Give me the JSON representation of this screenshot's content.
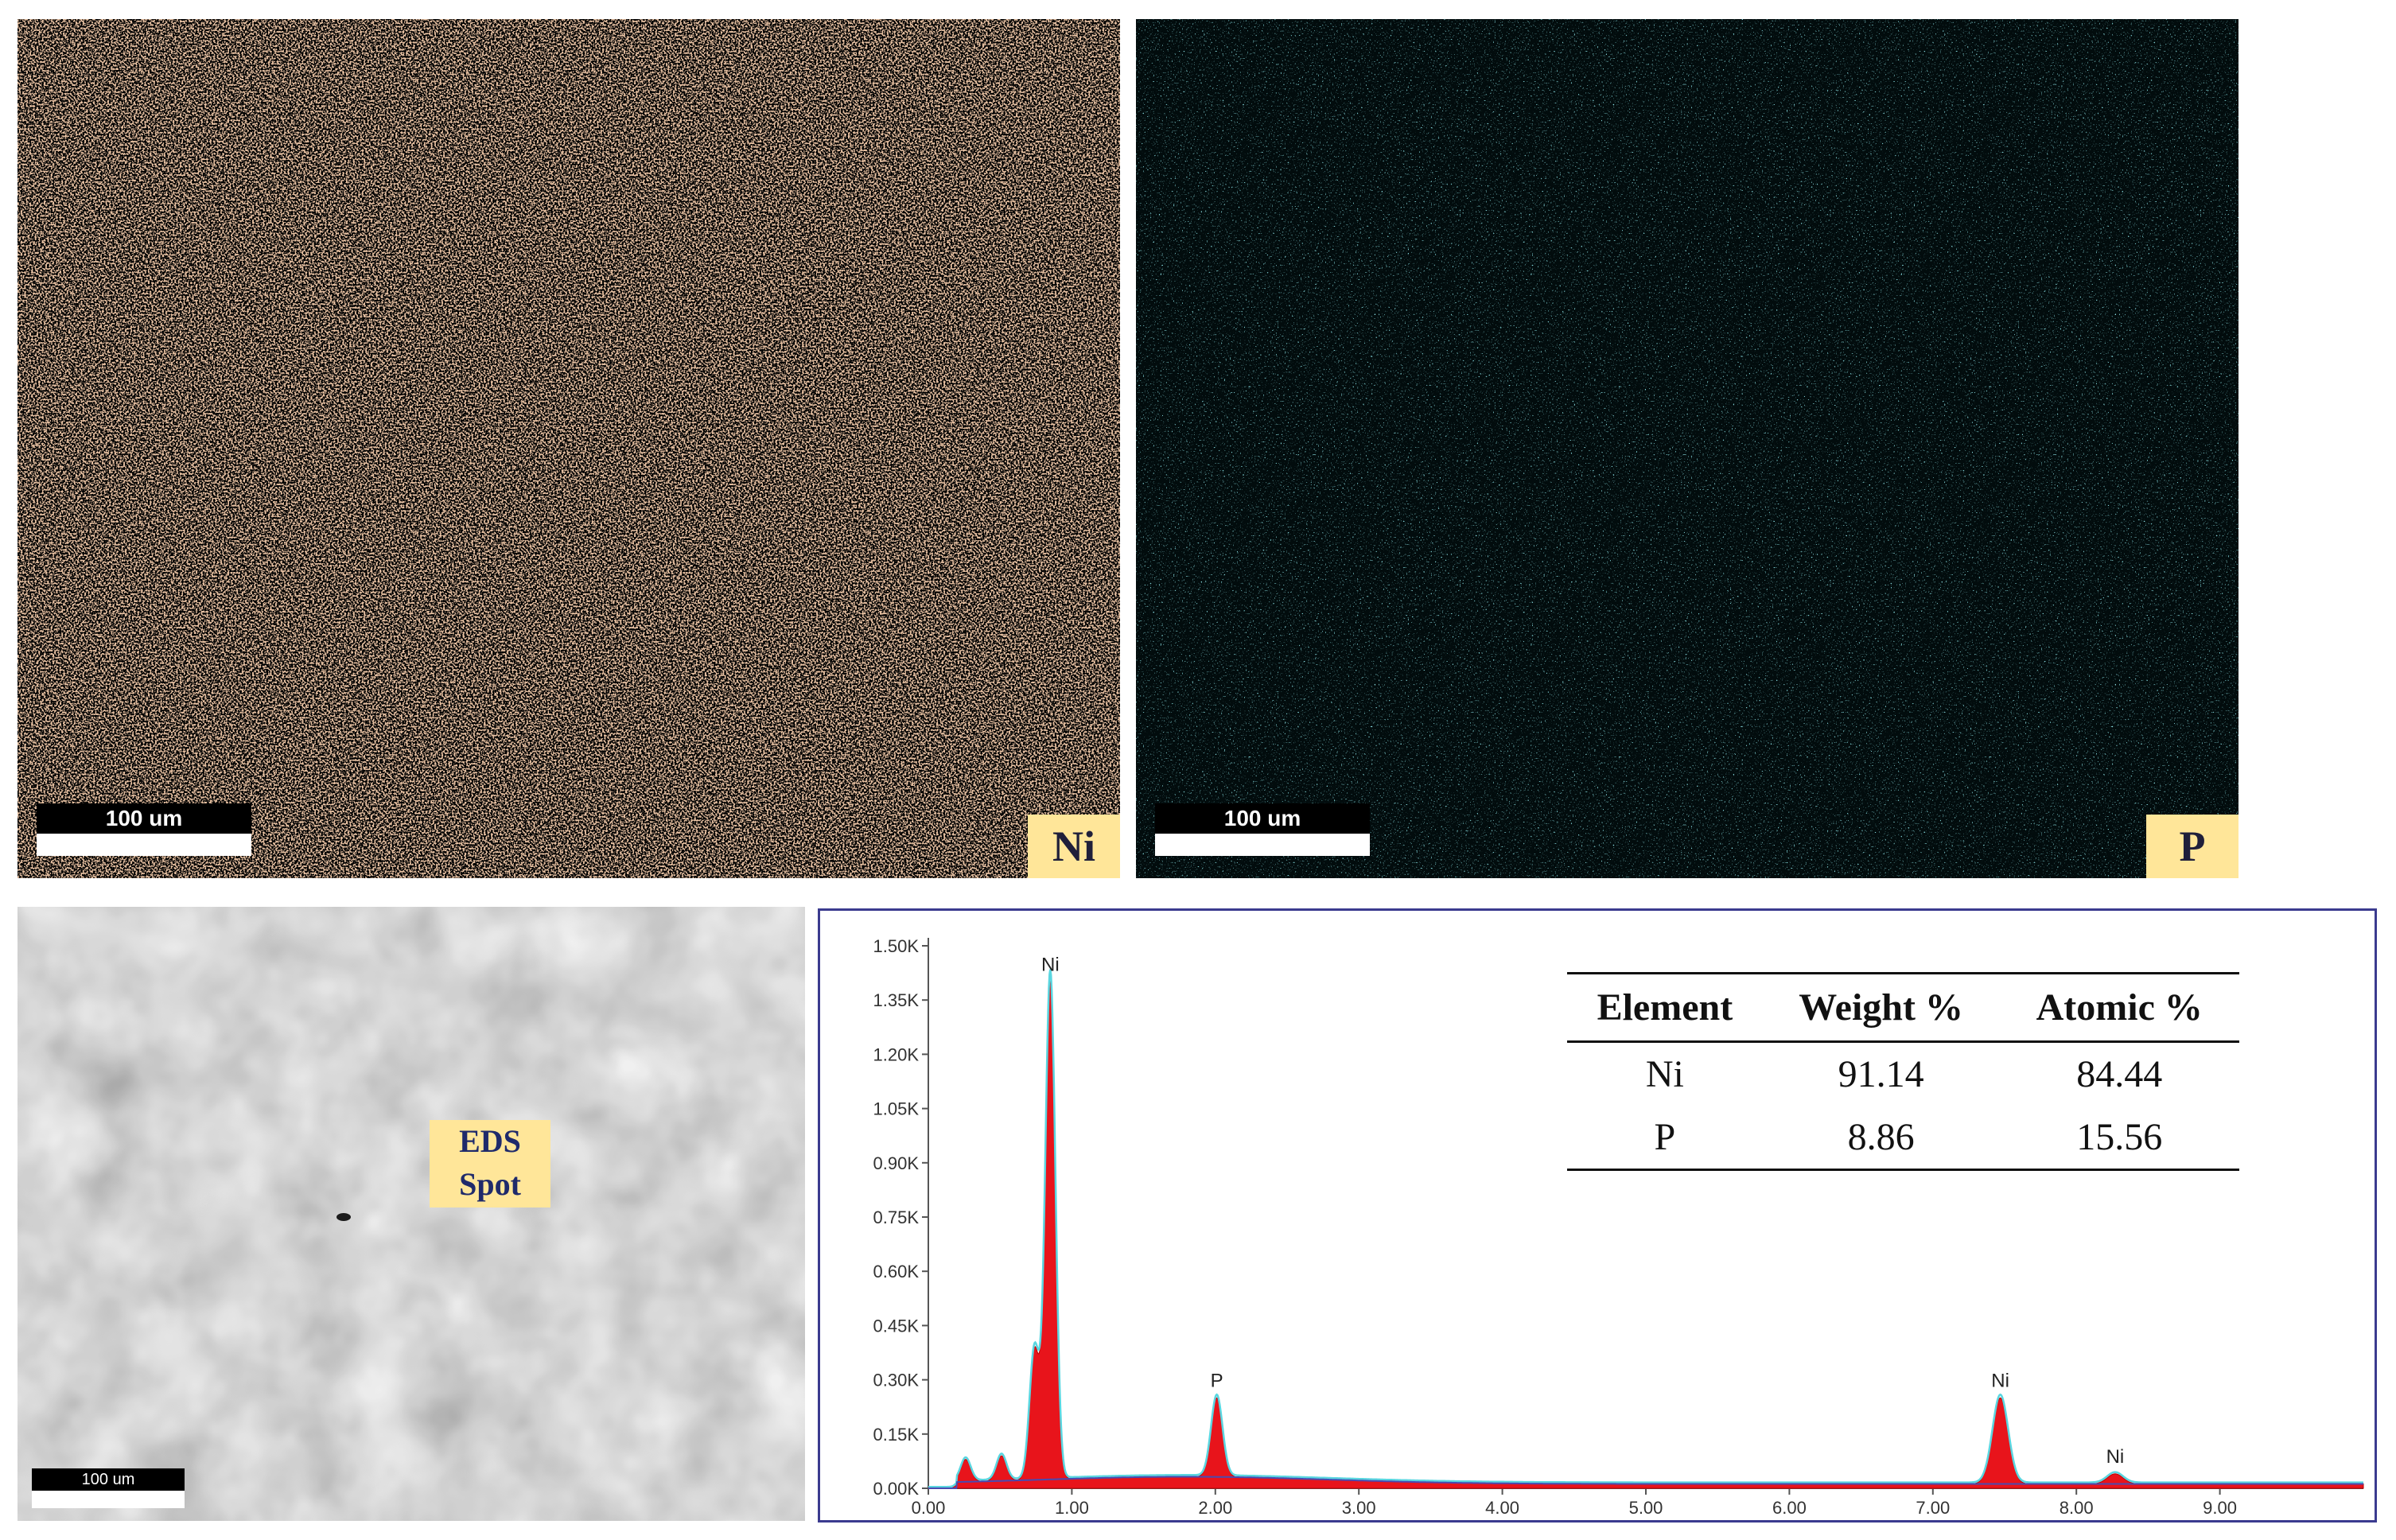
{
  "maps": [
    {
      "element_label": "Ni",
      "scale_label": "100 um",
      "color": "#c8845a"
    },
    {
      "element_label": "P",
      "scale_label": "100 um",
      "color": "#3fbcc4"
    }
  ],
  "sem": {
    "spot_label_line1": "EDS",
    "spot_label_line2": "Spot",
    "scale_label": "100 um"
  },
  "composition_table": {
    "headers": [
      "Element",
      "Weight %",
      "Atomic %"
    ],
    "rows": [
      {
        "element": "Ni",
        "weight": "91.14",
        "atomic": "84.44"
      },
      {
        "element": "P",
        "weight": "8.86",
        "atomic": "15.56"
      }
    ]
  },
  "chart_data": {
    "type": "line",
    "title": "",
    "xlabel": "",
    "ylabel": "",
    "xlim": [
      0,
      10
    ],
    "ylim": [
      0,
      1.5
    ],
    "x_ticks": [
      "0.00",
      "1.00",
      "2.00",
      "3.00",
      "4.00",
      "5.00",
      "6.00",
      "7.00",
      "8.00",
      "9.00"
    ],
    "y_ticks": [
      "0.00K",
      "0.15K",
      "0.30K",
      "0.45K",
      "0.60K",
      "0.75K",
      "0.90K",
      "1.05K",
      "1.20K",
      "1.35K",
      "1.50K"
    ],
    "peaks": [
      {
        "label": "Ni",
        "x": 0.85,
        "y": 1.4
      },
      {
        "label": "P",
        "x": 2.01,
        "y": 0.25
      },
      {
        "label": "Ni",
        "x": 7.47,
        "y": 0.25
      },
      {
        "label": "Ni",
        "x": 8.27,
        "y": 0.04
      }
    ],
    "minor_peaks": [
      {
        "x": 0.26,
        "y": 0.08
      },
      {
        "x": 0.51,
        "y": 0.09
      },
      {
        "x": 0.74,
        "y": 0.38
      }
    ],
    "colors": {
      "fill": "#e8141b",
      "fit": "#5ad6e0",
      "background": "#4a4ab0"
    }
  }
}
